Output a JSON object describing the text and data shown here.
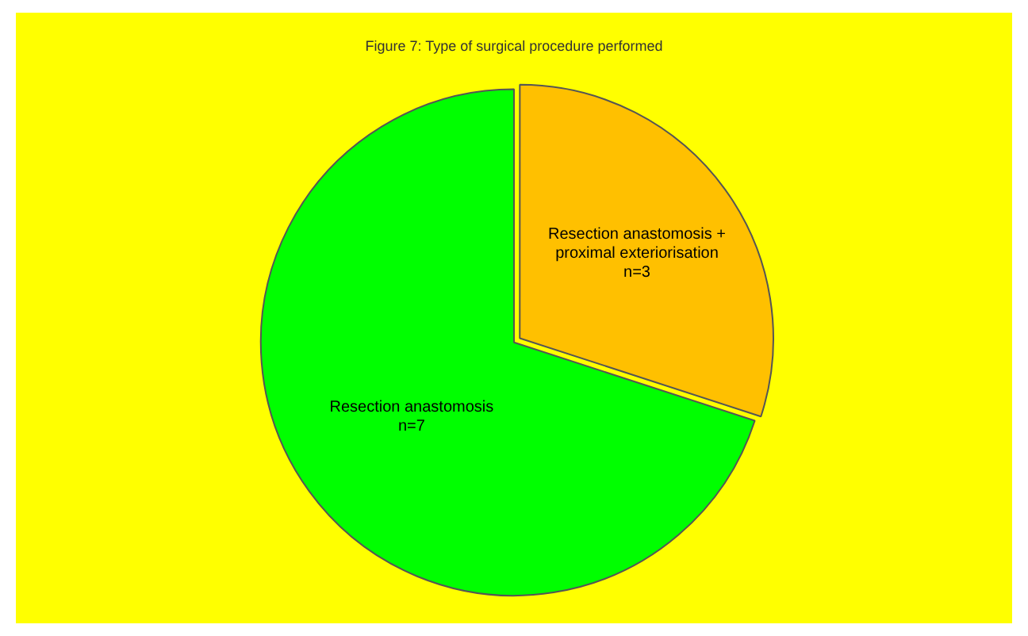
{
  "chart_data": {
    "type": "pie",
    "title": "Figure 7: Type of surgical procedure performed",
    "categories": [
      "Resection anastomosis + proximal exteriorisation",
      "Resection anastomosis"
    ],
    "values": [
      3,
      7
    ],
    "colors": [
      "#ffc000",
      "#00ff00"
    ],
    "value_labels": [
      "n=3",
      "n=7"
    ],
    "legend": false
  }
}
